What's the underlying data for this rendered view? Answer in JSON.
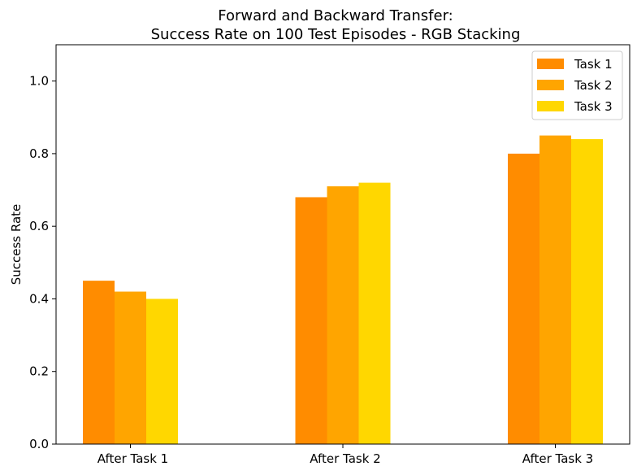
{
  "chart_data": {
    "type": "bar",
    "title_line1": "Forward and Backward Transfer:",
    "title_line2": "Success Rate on 100 Test Episodes - RGB Stacking",
    "xlabel": "",
    "ylabel": "Success Rate",
    "ylim": [
      0,
      1.1
    ],
    "yticks": [
      "0.0",
      "0.2",
      "0.4",
      "0.6",
      "0.8",
      "1.0"
    ],
    "categories": [
      "After Task 1",
      "After Task 2",
      "After Task 3"
    ],
    "series": [
      {
        "name": "Task 1",
        "color": "#ff8c00",
        "values": [
          0.45,
          0.68,
          0.8
        ]
      },
      {
        "name": "Task 2",
        "color": "#ffa500",
        "values": [
          0.42,
          0.71,
          0.85
        ]
      },
      {
        "name": "Task 3",
        "color": "#ffd700",
        "values": [
          0.4,
          0.72,
          0.84
        ]
      }
    ],
    "legend_position": "top-right",
    "grid": false
  }
}
